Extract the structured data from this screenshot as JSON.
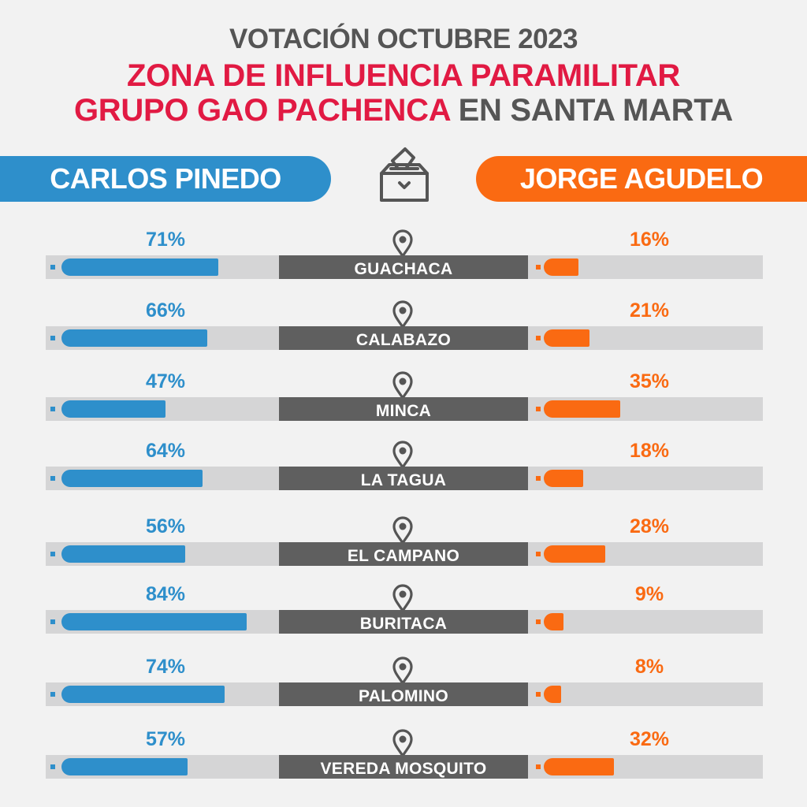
{
  "header": {
    "line1": "VOTACIÓN OCTUBRE 2023",
    "line2": "ZONA DE INFLUENCIA PARAMILITAR",
    "line3_highlight": "GRUPO GAO PACHENCA",
    "line3_rest": " EN SANTA MARTA"
  },
  "candidates": {
    "left": "CARLOS PINEDO",
    "right": "JORGE AGUDELO"
  },
  "icons": {
    "center": "ballot-box-icon",
    "row": "location-pin-icon"
  },
  "colors": {
    "left": "#2e8fcb",
    "right": "#fa6a12",
    "title_red": "#e11a43",
    "title_grey": "#555555",
    "zone_label_bg": "#5f5f5f",
    "track": "#d5d5d6"
  },
  "chart_data": {
    "type": "bar",
    "categories": [
      "GUACHACA",
      "CALABAZO",
      "MINCA",
      "LA TAGUA",
      "EL CAMPANO",
      "BURITACA",
      "PALOMINO",
      "VEREDA MOSQUITO"
    ],
    "series": [
      {
        "name": "CARLOS PINEDO",
        "values": [
          71,
          66,
          47,
          64,
          56,
          84,
          74,
          57
        ],
        "labels": [
          "71%",
          "66%",
          "47%",
          "64%",
          "56%",
          "84%",
          "74%",
          "57%"
        ]
      },
      {
        "name": "JORGE AGUDELO",
        "values": [
          16,
          21,
          35,
          18,
          28,
          9,
          8,
          32
        ],
        "labels": [
          "16%",
          "21%",
          "35%",
          "18%",
          "28%",
          "9%",
          "8%",
          "32%"
        ]
      }
    ]
  }
}
